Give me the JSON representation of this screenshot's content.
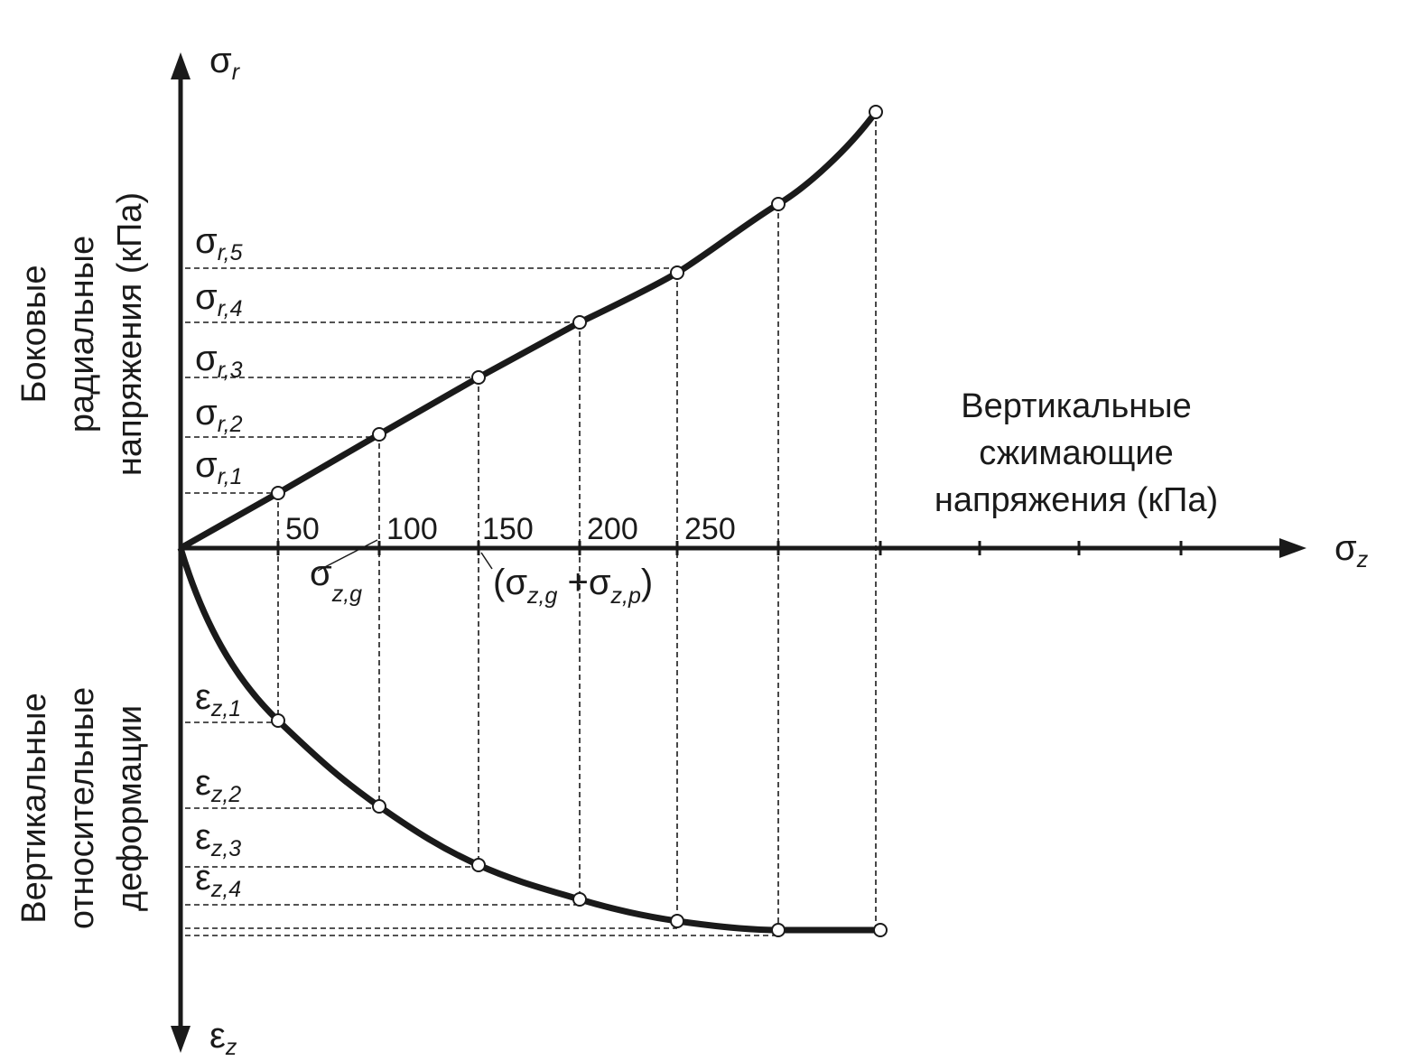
{
  "axes": {
    "y_top": {
      "symbol": "σ",
      "sub": "r"
    },
    "x": {
      "symbol": "σ",
      "sub": "z"
    },
    "y_bottom": {
      "symbol": "ε",
      "sub": "z"
    }
  },
  "axis_titles": {
    "top_left": [
      "Боковые",
      "радиальные",
      "напряжения (кПа)"
    ],
    "x": [
      "Вертикальные",
      "сжимающие",
      "напряжения (кПа)"
    ],
    "bottom_left": [
      "Вертикальные",
      "относительные",
      "деформации"
    ]
  },
  "tick_labels": [
    "50",
    "100",
    "150",
    "200",
    "250"
  ],
  "sigma_r_labels": [
    {
      "symbol": "σ",
      "sub": "r,1"
    },
    {
      "symbol": "σ",
      "sub": "r,2"
    },
    {
      "symbol": "σ",
      "sub": "r,3"
    },
    {
      "symbol": "σ",
      "sub": "r,4"
    },
    {
      "symbol": "σ",
      "sub": "r,5"
    }
  ],
  "epsilon_labels": [
    {
      "symbol": "ε",
      "sub": "z,1"
    },
    {
      "symbol": "ε",
      "sub": "z,2"
    },
    {
      "symbol": "ε",
      "sub": "z,3"
    },
    {
      "symbol": "ε",
      "sub": "z,4"
    }
  ],
  "annotations": {
    "sigma_zg": {
      "symbol": "σ",
      "sub": "z,g"
    },
    "sum": [
      {
        "text": "(σ"
      },
      {
        "sub": "z,g"
      },
      {
        "text": " +σ"
      },
      {
        "sub": "z,p"
      },
      {
        "text": ")"
      }
    ]
  }
}
